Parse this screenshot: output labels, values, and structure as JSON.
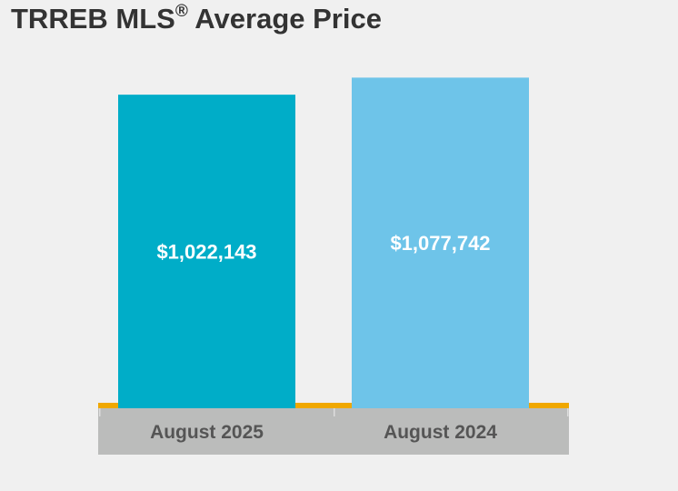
{
  "title": {
    "main": "TRREB MLS",
    "sup": "®",
    "rest": " Average Price"
  },
  "chart_data": {
    "type": "bar",
    "title": "TRREB MLS® Average Price",
    "categories": [
      "August 2025",
      "August 2024"
    ],
    "values": [
      1022143,
      1077742
    ],
    "data_labels": [
      "$1,022,143",
      "$1,077,742"
    ],
    "colors": [
      "#00adc8",
      "#6ec4e9"
    ],
    "axis_color": "#f0a800",
    "category_band_color": "#bbbcbb",
    "xlabel": "",
    "ylabel": "",
    "ylim": [
      0,
      1150000
    ],
    "grid": false,
    "legend": "none"
  }
}
